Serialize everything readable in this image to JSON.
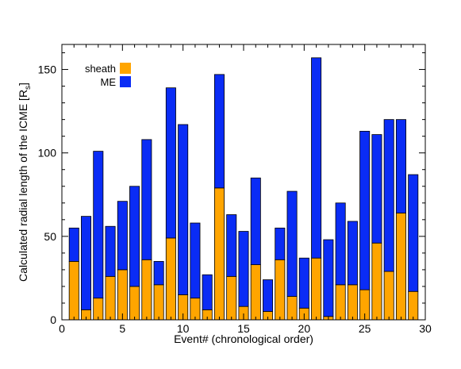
{
  "chart_data": {
    "type": "bar",
    "stacked": true,
    "xlabel": "Event# (chronological order)",
    "ylabel_main": "Calculated radial length of the ICME [R",
    "ylabel_sub": "s",
    "ylabel_end": "]",
    "xlim": [
      0,
      30
    ],
    "ylim": [
      0,
      165
    ],
    "xticks": [
      0,
      5,
      10,
      15,
      20,
      25,
      30
    ],
    "yticks": [
      0,
      50,
      100,
      150
    ],
    "x_minor_step": 1,
    "y_minor_step": 10,
    "legend_position": "top-left",
    "x": [
      1,
      2,
      3,
      4,
      5,
      6,
      7,
      8,
      9,
      10,
      11,
      12,
      13,
      14,
      15,
      16,
      17,
      18,
      19,
      20,
      21,
      22,
      23,
      24,
      25,
      26,
      27,
      28,
      29
    ],
    "series": [
      {
        "name": "sheath",
        "color": "#FFA500",
        "values": [
          35,
          6,
          13,
          26,
          30,
          20,
          36,
          21,
          49,
          15,
          13,
          6,
          79,
          26,
          8,
          33,
          5,
          36,
          14,
          7,
          37,
          2,
          21,
          21,
          18,
          46,
          29,
          64,
          17
        ]
      },
      {
        "name": "ME",
        "color": "#0A2CF5",
        "values": [
          20,
          56,
          88,
          30,
          41,
          60,
          72,
          14,
          90,
          102,
          45,
          21,
          68,
          37,
          45,
          52,
          19,
          19,
          63,
          30,
          120,
          46,
          49,
          38,
          95,
          65,
          91,
          56,
          70
        ]
      }
    ],
    "totals": [
      55,
      62,
      101,
      56,
      71,
      80,
      108,
      35,
      139,
      117,
      58,
      27,
      147,
      63,
      53,
      85,
      24,
      55,
      77,
      37,
      157,
      48,
      70,
      59,
      113,
      111,
      120,
      120,
      87
    ]
  }
}
